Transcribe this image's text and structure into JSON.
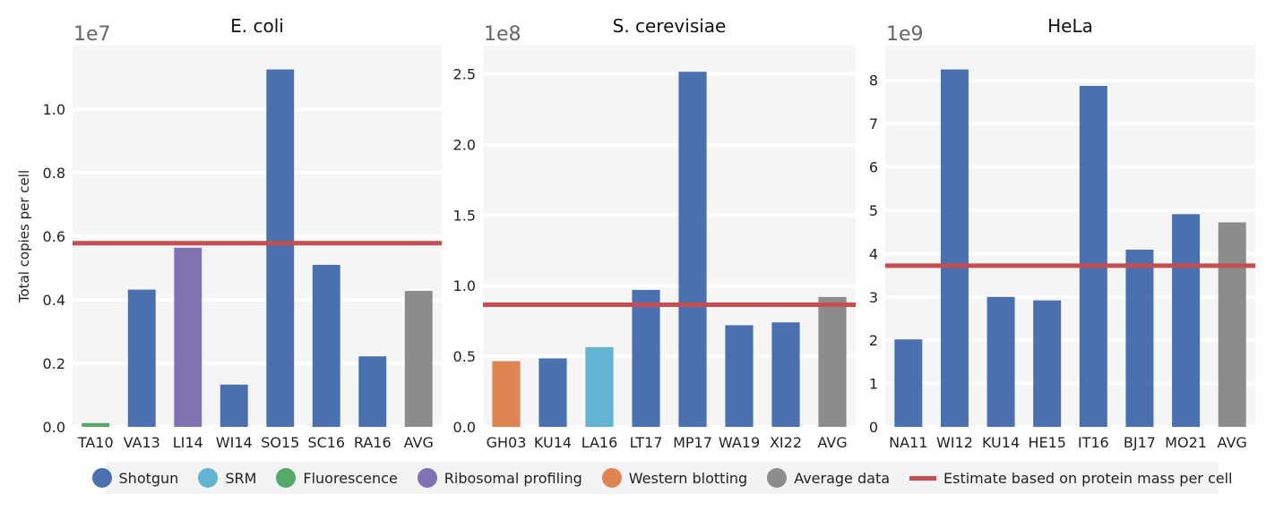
{
  "chart_data": [
    {
      "type": "bar",
      "title": "E. coli",
      "scale_label": "1e7",
      "ylabel": "Total copies per cell",
      "categories": [
        "TA10",
        "VA13",
        "LI14",
        "WI14",
        "SO15",
        "SC16",
        "RA16",
        "AVG"
      ],
      "values": [
        120000,
        4320000,
        5640000,
        1330000,
        11250000,
        5100000,
        2220000,
        4280000
      ],
      "methods": [
        "Fluorescence",
        "Shotgun",
        "Ribosomal profiling",
        "Shotgun",
        "Shotgun",
        "Shotgun",
        "Shotgun",
        "Average data"
      ],
      "estimate": 5780000,
      "yticks": [
        0,
        2000000,
        4000000,
        6000000,
        8000000,
        10000000
      ],
      "ytick_labels": [
        "0.0",
        "0.2",
        "0.4",
        "0.6",
        "0.8",
        "1.0"
      ],
      "ylim": [
        0,
        12000000
      ]
    },
    {
      "type": "bar",
      "title": "S. cerevisiae",
      "scale_label": "1e8",
      "ylabel": "",
      "categories": [
        "GH03",
        "KU14",
        "LA16",
        "LT17",
        "MP17",
        "WA19",
        "XI22",
        "AVG"
      ],
      "values": [
        46500000,
        48500000,
        56500000,
        97000000,
        251500000,
        72000000,
        74000000,
        92000000
      ],
      "methods": [
        "Western blotting",
        "Shotgun",
        "SRM",
        "Shotgun",
        "Shotgun",
        "Shotgun",
        "Shotgun",
        "Average data"
      ],
      "estimate": 86500000,
      "yticks": [
        0,
        50000000,
        100000000,
        150000000,
        200000000,
        250000000
      ],
      "ytick_labels": [
        "0.0",
        "0.5",
        "1.0",
        "1.5",
        "2.0",
        "2.5"
      ],
      "ylim": [
        0,
        270000000
      ]
    },
    {
      "type": "bar",
      "title": "HeLa",
      "scale_label": "1e9",
      "ylabel": "",
      "categories": [
        "NA11",
        "WI12",
        "KU14",
        "HE15",
        "IT16",
        "BJ17",
        "MO21",
        "AVG"
      ],
      "values": [
        2020000000,
        8250000000,
        3000000000,
        2920000000,
        7870000000,
        4090000000,
        4910000000,
        4720000000
      ],
      "methods": [
        "Shotgun",
        "Shotgun",
        "Shotgun",
        "Shotgun",
        "Shotgun",
        "Shotgun",
        "Shotgun",
        "Average data"
      ],
      "estimate": 3720000000,
      "yticks": [
        0,
        1000000000,
        2000000000,
        3000000000,
        4000000000,
        5000000000,
        6000000000,
        7000000000,
        8000000000
      ],
      "ytick_labels": [
        "0",
        "1",
        "2",
        "3",
        "4",
        "5",
        "6",
        "7",
        "8"
      ],
      "ylim": [
        0,
        8800000000
      ]
    }
  ],
  "legend": {
    "position": "bottom-center",
    "items": [
      {
        "label": "Shotgun",
        "color": "#4a70b0",
        "marker": "circle"
      },
      {
        "label": "SRM",
        "color": "#62b4d0",
        "marker": "circle"
      },
      {
        "label": "Fluorescence",
        "color": "#55a868",
        "marker": "circle"
      },
      {
        "label": "Ribosomal profiling",
        "color": "#8172b2",
        "marker": "circle"
      },
      {
        "label": "Western blotting",
        "color": "#dd8452",
        "marker": "circle"
      },
      {
        "label": "Average data",
        "color": "#8c8c8c",
        "marker": "circle"
      },
      {
        "label": "Estimate based on protein mass per cell",
        "color": "#c44e52",
        "marker": "line"
      }
    ]
  },
  "colors": {
    "plot_background": "#f5f5f5",
    "gridline": "#ffffff",
    "estimate_line": "#c44e52"
  }
}
